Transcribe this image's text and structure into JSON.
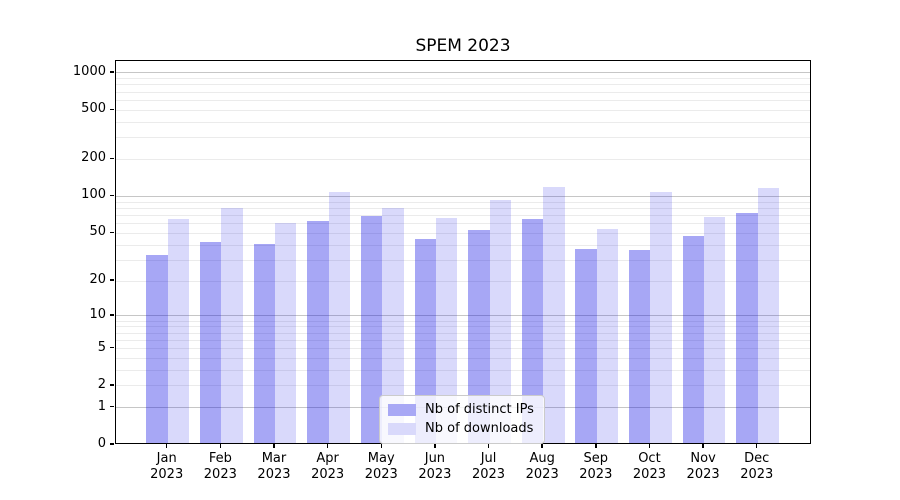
{
  "window": {
    "background": "#ffffff"
  },
  "chart_data": {
    "type": "bar",
    "title": "SPEM 2023",
    "x_categories": [
      "Jan",
      "Feb",
      "Mar",
      "Apr",
      "May",
      "Jun",
      "Jul",
      "Aug",
      "Sep",
      "Oct",
      "Nov",
      "Dec"
    ],
    "x_year_label": "2023",
    "series": [
      {
        "name": "Nb of distinct IPs",
        "color": "rgba(12,12,228,0.36)",
        "solid_color": "#a8a8f5",
        "values": [
          32,
          41,
          39,
          61,
          67,
          43,
          51,
          63,
          36,
          35,
          46,
          71
        ]
      },
      {
        "name": "Nb of downloads",
        "color": "rgba(12,12,228,0.155)",
        "solid_color": "#d9d9fb",
        "values": [
          63,
          77,
          58,
          105,
          77,
          64,
          91,
          116,
          52,
          104,
          65,
          113
        ]
      }
    ],
    "y_axis": {
      "scale": "log1p",
      "tick_labels": [
        0,
        1,
        2,
        5,
        10,
        20,
        50,
        100,
        200,
        500,
        1000
      ],
      "range_top": 1250
    },
    "grid": {
      "major_values": [
        1,
        10,
        100,
        1000
      ],
      "minor_values": [
        2,
        3,
        4,
        5,
        6,
        7,
        8,
        9,
        20,
        30,
        40,
        50,
        60,
        70,
        80,
        90,
        200,
        300,
        400,
        500,
        600,
        700,
        800,
        900
      ],
      "major_color": "#c6c6c6",
      "minor_color": "#ebebeb"
    },
    "legend": {
      "position": "lower-center",
      "border_color": "#cbcbcb"
    },
    "axis_color": "#000000"
  }
}
